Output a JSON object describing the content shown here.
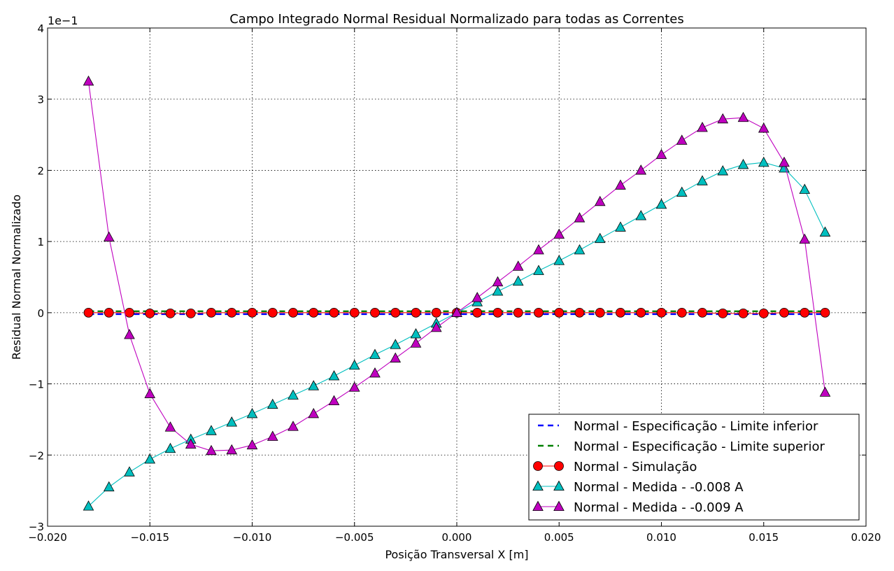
{
  "chart_data": {
    "type": "line",
    "title": "Campo Integrado Normal Residual Normalizado para todas as Correntes",
    "xlabel": "Posição Transversal X [m]",
    "ylabel": "Residual Normal Normalizado",
    "y_scale_label": "1e−1",
    "xlim": [
      -0.02,
      0.02
    ],
    "ylim": [
      -3,
      4
    ],
    "x_ticks": [
      -0.02,
      -0.015,
      -0.01,
      -0.005,
      0.0,
      0.005,
      0.01,
      0.015,
      0.02
    ],
    "x_tick_labels": [
      "−0.020",
      "−0.015",
      "−0.010",
      "−0.005",
      "0.000",
      "0.005",
      "0.010",
      "0.015",
      "0.020"
    ],
    "y_ticks": [
      -3,
      -2,
      -1,
      0,
      1,
      2,
      3,
      4
    ],
    "y_tick_labels": [
      "−3",
      "−2",
      "−1",
      "0",
      "1",
      "2",
      "3",
      "4"
    ],
    "grid": true,
    "legend_position": "bottom-right",
    "x": [
      -0.018,
      -0.017,
      -0.016,
      -0.015,
      -0.014,
      -0.013,
      -0.012,
      -0.011,
      -0.01,
      -0.009,
      -0.008,
      -0.007,
      -0.006,
      -0.005,
      -0.004,
      -0.003,
      -0.002,
      -0.001,
      0.0,
      0.001,
      0.002,
      0.003,
      0.004,
      0.005,
      0.006,
      0.007,
      0.008,
      0.009,
      0.01,
      0.011,
      0.012,
      0.013,
      0.014,
      0.015,
      0.016,
      0.017,
      0.018
    ],
    "series": [
      {
        "name": "Normal - Especificação - Limite inferior",
        "color": "#0000ff",
        "style": "dashed",
        "marker": "none",
        "x": [
          -0.018,
          0.018
        ],
        "values": [
          -0.02,
          -0.02
        ]
      },
      {
        "name": "Normal - Especificação - Limite superior",
        "color": "#008000",
        "style": "dashed",
        "marker": "none",
        "x": [
          -0.018,
          0.018
        ],
        "values": [
          0.02,
          0.02
        ]
      },
      {
        "name": "Normal - Simulação",
        "color": "#ff0000",
        "style": "solid",
        "marker": "circle",
        "values": [
          0.0,
          0.0,
          0.0,
          -0.01,
          -0.01,
          -0.01,
          0.0,
          0.0,
          0.0,
          0.0,
          0.0,
          0.0,
          0.0,
          0.0,
          0.0,
          0.0,
          0.0,
          0.0,
          0.0,
          0.0,
          0.0,
          0.0,
          0.0,
          0.0,
          0.0,
          0.0,
          0.0,
          0.0,
          0.0,
          0.0,
          0.0,
          -0.01,
          -0.01,
          -0.01,
          0.0,
          0.0,
          0.0
        ]
      },
      {
        "name": "Normal - Medida - -0.008 A",
        "color": "#00bfbf",
        "style": "solid",
        "marker": "triangle",
        "values": [
          -2.72,
          -2.45,
          -2.24,
          -2.06,
          -1.91,
          -1.78,
          -1.66,
          -1.54,
          -1.42,
          -1.29,
          -1.16,
          -1.03,
          -0.89,
          -0.74,
          -0.59,
          -0.45,
          -0.3,
          -0.15,
          0.0,
          0.15,
          0.3,
          0.44,
          0.59,
          0.73,
          0.88,
          1.04,
          1.2,
          1.36,
          1.52,
          1.69,
          1.85,
          1.99,
          2.08,
          2.11,
          2.03,
          1.73,
          1.13
        ]
      },
      {
        "name": "Normal - Medida - -0.009 A",
        "color": "#bf00bf",
        "style": "solid",
        "marker": "triangle",
        "values": [
          3.25,
          1.06,
          -0.31,
          -1.14,
          -1.61,
          -1.85,
          -1.94,
          -1.93,
          -1.86,
          -1.74,
          -1.6,
          -1.42,
          -1.24,
          -1.05,
          -0.85,
          -0.64,
          -0.43,
          -0.21,
          0.0,
          0.21,
          0.43,
          0.65,
          0.88,
          1.1,
          1.33,
          1.56,
          1.79,
          2.0,
          2.22,
          2.42,
          2.6,
          2.72,
          2.74,
          2.59,
          2.11,
          1.03,
          -1.12
        ]
      }
    ]
  }
}
